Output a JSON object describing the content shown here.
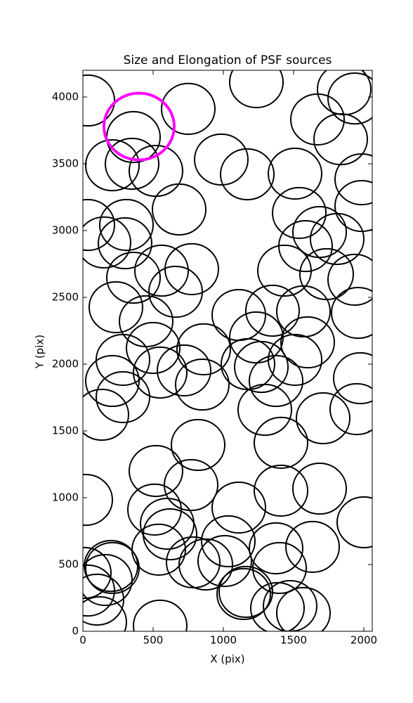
{
  "chart_data": {
    "type": "scatter",
    "title": "Size and Elongation of PSF sources",
    "x_label": "X (pix)",
    "y_label": "Y (pix)",
    "xlim": [
      0,
      2060
    ],
    "ylim": [
      0,
      4200
    ],
    "xticks": [
      0,
      500,
      1000,
      1500,
      2000
    ],
    "yticks": [
      0,
      500,
      1000,
      1500,
      2000,
      2500,
      3000,
      3500,
      4000
    ],
    "series": [
      {
        "color": "#000000",
        "radius": 190,
        "x": [
          35,
          750,
          1235,
          1860,
          1935,
          1670,
          1835,
          360,
          210,
          350,
          520,
          985,
          1170,
          1510,
          1985,
          685,
          1540,
          1985,
          35,
          150,
          310,
          300,
          1685,
          1810,
          1585,
          360,
          560,
          775,
          660,
          1435,
          1735,
          1935,
          235,
          450,
          1110,
          1350,
          1570,
          1960,
          500,
          860,
          1235,
          1600,
          285,
          720,
          1175,
          1270,
          1510,
          550,
          210,
          850,
          1375,
          1975,
          285,
          135,
          1295,
          1710,
          1950,
          1410,
          820,
          520,
          770,
          20,
          1410,
          1685,
          510,
          1110,
          600,
          2000,
          620,
          540,
          200,
          210,
          785,
          1035,
          1635,
          1375,
          875,
          1010,
          1400,
          10,
          160,
          35,
          100,
          1160,
          1145,
          1385,
          1475,
          1570,
          120,
          550
        ],
        "y": [
          3974,
          3911,
          4111,
          4058,
          3989,
          3832,
          3684,
          3700,
          3489,
          3500,
          3447,
          3532,
          3421,
          3426,
          3384,
          3158,
          3132,
          3184,
          3042,
          2911,
          3042,
          2905,
          2989,
          2937,
          2884,
          2647,
          2700,
          2711,
          2542,
          2700,
          2674,
          2632,
          2426,
          2321,
          2368,
          2400,
          2395,
          2384,
          2121,
          2111,
          2200,
          2163,
          2032,
          1953,
          2000,
          1979,
          2032,
          1937,
          1874,
          1847,
          1874,
          1895,
          1753,
          1621,
          1658,
          1595,
          1663,
          1411,
          1395,
          1200,
          1095,
          984,
          1053,
          1068,
          911,
          926,
          805,
          816,
          726,
          611,
          489,
          474,
          516,
          674,
          632,
          621,
          500,
          526,
          474,
          437,
          384,
          305,
          237,
          295,
          279,
          174,
          189,
          137,
          68,
          42
        ]
      },
      {
        "color": "#ff00ff",
        "radius": 250,
        "x": [
          400
        ],
        "y": [
          3779
        ]
      }
    ]
  }
}
